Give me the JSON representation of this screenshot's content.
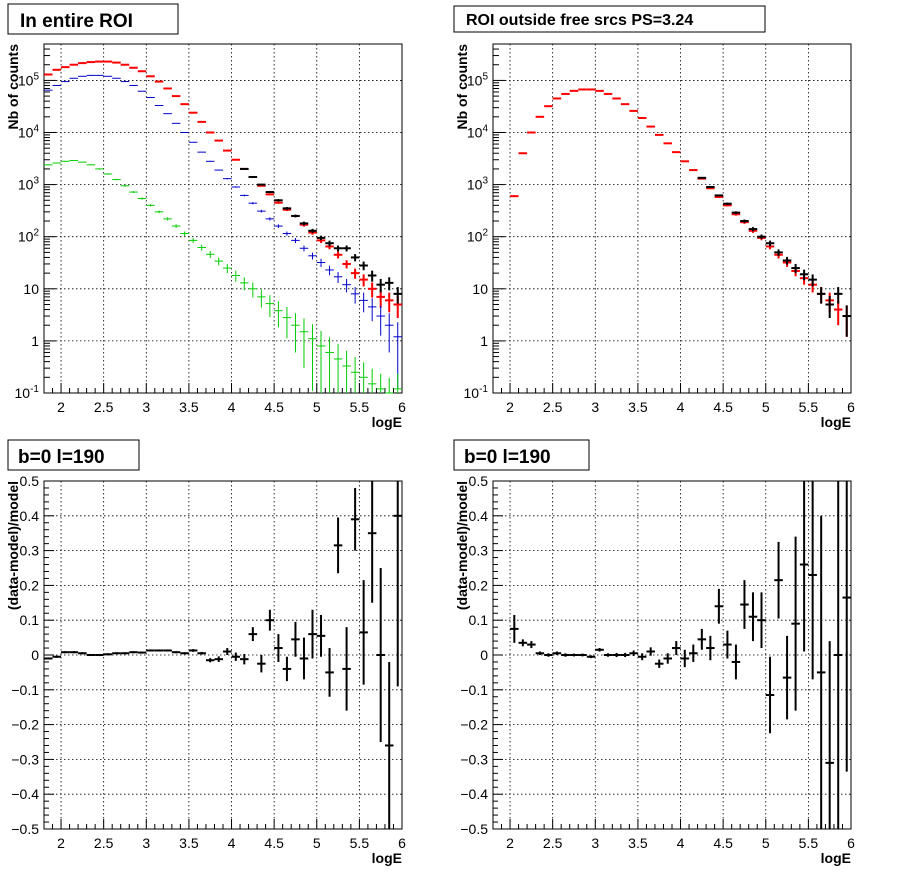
{
  "chart_data": [
    {
      "type": "scatter",
      "title": "In entire ROI",
      "xlabel": "logE",
      "ylabel": "Nb of counts",
      "xlim": [
        1.8,
        6.0
      ],
      "ylim": [
        0.1,
        500000
      ],
      "ylog": true,
      "grid": true,
      "x_ticks": [
        "2",
        "2.5",
        "3",
        "3.5",
        "4",
        "4.5",
        "5",
        "5.5",
        "6"
      ],
      "y_ticks": [
        "10^-1",
        "1",
        "10",
        "10^2",
        "10^3",
        "10^4",
        "10^5"
      ],
      "series": [
        {
          "color": "#ff0000",
          "x": [
            1.85,
            1.95,
            2.05,
            2.15,
            2.25,
            2.35,
            2.45,
            2.55,
            2.65,
            2.75,
            2.85,
            2.95,
            3.05,
            3.15,
            3.25,
            3.35,
            3.45,
            3.55,
            3.65,
            3.75,
            3.85,
            3.95,
            4.05,
            4.15,
            4.25,
            4.35,
            4.45,
            4.55,
            4.65,
            4.75,
            4.85,
            4.95,
            5.05,
            5.15,
            5.25,
            5.35,
            5.45,
            5.55,
            5.65,
            5.75,
            5.85,
            5.95
          ],
          "y": [
            130000,
            160000,
            180000,
            200000,
            215000,
            225000,
            230000,
            230000,
            220000,
            200000,
            175000,
            150000,
            120000,
            95000,
            70000,
            50000,
            35000,
            24000,
            16000,
            10000,
            7000,
            4500,
            3000,
            2000,
            1400,
            950,
            650,
            450,
            330,
            250,
            170,
            120,
            85,
            65,
            45,
            30,
            20,
            15,
            10,
            7,
            6,
            5
          ],
          "yerr_frac": [
            0.01,
            0.01,
            0.01,
            0.01,
            0.01,
            0.01,
            0.01,
            0.01,
            0.01,
            0.01,
            0.01,
            0.01,
            0.01,
            0.01,
            0.01,
            0.01,
            0.01,
            0.01,
            0.01,
            0.01,
            0.015,
            0.015,
            0.02,
            0.02,
            0.03,
            0.03,
            0.04,
            0.05,
            0.06,
            0.06,
            0.08,
            0.09,
            0.11,
            0.12,
            0.15,
            0.18,
            0.22,
            0.26,
            0.32,
            0.38,
            0.41,
            0.45
          ]
        },
        {
          "color": "#000000",
          "x": [
            4.15,
            4.25,
            4.35,
            4.45,
            4.55,
            4.65,
            4.75,
            4.85,
            4.95,
            5.05,
            5.15,
            5.25,
            5.35,
            5.45,
            5.55,
            5.65,
            5.75,
            5.85,
            5.95
          ],
          "y": [
            2000,
            1400,
            1000,
            720,
            500,
            350,
            250,
            180,
            130,
            95,
            75,
            60,
            60,
            40,
            28,
            18,
            12,
            13,
            8
          ],
          "yerr_frac": [
            0.02,
            0.03,
            0.03,
            0.04,
            0.05,
            0.06,
            0.06,
            0.08,
            0.09,
            0.1,
            0.12,
            0.13,
            0.13,
            0.16,
            0.19,
            0.24,
            0.29,
            0.28,
            0.35
          ]
        },
        {
          "color": "#0000cc",
          "x": [
            1.85,
            1.95,
            2.05,
            2.15,
            2.25,
            2.35,
            2.45,
            2.55,
            2.65,
            2.75,
            2.85,
            2.95,
            3.05,
            3.15,
            3.25,
            3.35,
            3.45,
            3.55,
            3.65,
            3.75,
            3.85,
            3.95,
            4.05,
            4.15,
            4.25,
            4.35,
            4.45,
            4.55,
            4.65,
            4.75,
            4.85,
            4.95,
            5.05,
            5.15,
            5.25,
            5.35,
            5.45,
            5.55,
            5.65,
            5.75,
            5.85,
            5.95
          ],
          "y": [
            65000,
            80000,
            95000,
            110000,
            120000,
            125000,
            125000,
            120000,
            110000,
            95000,
            80000,
            62000,
            47000,
            33000,
            23000,
            15000,
            10000,
            6500,
            4200,
            2800,
            1900,
            1300,
            900,
            620,
            440,
            310,
            220,
            160,
            115,
            85,
            60,
            43,
            32,
            23,
            17,
            12,
            8,
            6,
            4.5,
            3,
            2,
            1.2
          ],
          "yerr_frac": [
            0.01,
            0.01,
            0.01,
            0.01,
            0.01,
            0.01,
            0.01,
            0.01,
            0.01,
            0.01,
            0.01,
            0.01,
            0.01,
            0.01,
            0.01,
            0.01,
            0.01,
            0.01,
            0.015,
            0.02,
            0.02,
            0.03,
            0.03,
            0.04,
            0.05,
            0.06,
            0.07,
            0.08,
            0.09,
            0.11,
            0.13,
            0.15,
            0.18,
            0.21,
            0.24,
            0.29,
            0.35,
            0.41,
            0.47,
            0.58,
            0.7,
            0.9
          ]
        },
        {
          "color": "#00cc00",
          "x": [
            1.85,
            1.95,
            2.05,
            2.15,
            2.25,
            2.35,
            2.45,
            2.55,
            2.65,
            2.75,
            2.85,
            2.95,
            3.05,
            3.15,
            3.25,
            3.35,
            3.45,
            3.55,
            3.65,
            3.75,
            3.85,
            3.95,
            4.05,
            4.15,
            4.25,
            4.35,
            4.45,
            4.55,
            4.65,
            4.75,
            4.85,
            4.95,
            5.05,
            5.15,
            5.25,
            5.35,
            5.45,
            5.55,
            5.65,
            5.75,
            5.85,
            5.95
          ],
          "y": [
            2400,
            2600,
            2800,
            2900,
            2700,
            2400,
            2000,
            1600,
            1250,
            950,
            720,
            540,
            400,
            300,
            220,
            160,
            115,
            85,
            62,
            46,
            34,
            25,
            18,
            13,
            10,
            7,
            5.2,
            3.8,
            2.8,
            2,
            1.5,
            1.1,
            0.8,
            0.6,
            0.45,
            0.33,
            0.25,
            0.2,
            0.15,
            0.12,
            0.1,
            0.12
          ],
          "yerr_frac": [
            0.02,
            0.02,
            0.02,
            0.02,
            0.02,
            0.02,
            0.03,
            0.03,
            0.03,
            0.04,
            0.04,
            0.05,
            0.05,
            0.06,
            0.07,
            0.08,
            0.1,
            0.11,
            0.13,
            0.15,
            0.17,
            0.2,
            0.24,
            0.28,
            0.32,
            0.38,
            0.45,
            0.52,
            0.6,
            0.7,
            0.8,
            0.9,
            0.95,
            0.95,
            0.95,
            0.95,
            0.95,
            0.95,
            0.95,
            0.95,
            0.95,
            0.95
          ]
        }
      ]
    },
    {
      "type": "scatter",
      "title": "ROI outside free srcs PS=3.24",
      "xlabel": "logE",
      "ylabel": "Nb of counts",
      "xlim": [
        1.8,
        6.0
      ],
      "ylim": [
        0.1,
        500000
      ],
      "ylog": true,
      "grid": true,
      "x_ticks": [
        "2",
        "2.5",
        "3",
        "3.5",
        "4",
        "4.5",
        "5",
        "5.5",
        "6"
      ],
      "y_ticks": [
        "10^-1",
        "1",
        "10",
        "10^2",
        "10^3",
        "10^4",
        "10^5"
      ],
      "series": [
        {
          "color": "#ff0000",
          "x": [
            2.05,
            2.15,
            2.25,
            2.35,
            2.45,
            2.55,
            2.65,
            2.75,
            2.85,
            2.95,
            3.05,
            3.15,
            3.25,
            3.35,
            3.45,
            3.55,
            3.65,
            3.75,
            3.85,
            3.95,
            4.05,
            4.15,
            4.25,
            4.35,
            4.45,
            4.55,
            4.65,
            4.75,
            4.85,
            4.95,
            5.05,
            5.15,
            5.25,
            5.35,
            5.45,
            5.55,
            5.65,
            5.75,
            5.85,
            5.95
          ],
          "y": [
            600,
            4000,
            10000,
            20000,
            32000,
            45000,
            55000,
            63000,
            67000,
            67000,
            63000,
            55000,
            45000,
            35000,
            26000,
            19000,
            13000,
            9000,
            6200,
            4200,
            2800,
            1900,
            1300,
            850,
            580,
            400,
            270,
            190,
            130,
            95,
            65,
            45,
            32,
            22,
            16,
            12,
            8,
            6,
            4,
            3
          ],
          "yerr_frac": [
            0.04,
            0.02,
            0.01,
            0.01,
            0.01,
            0.01,
            0.01,
            0.01,
            0.01,
            0.01,
            0.01,
            0.01,
            0.01,
            0.01,
            0.01,
            0.01,
            0.01,
            0.01,
            0.015,
            0.015,
            0.02,
            0.02,
            0.03,
            0.03,
            0.04,
            0.05,
            0.06,
            0.07,
            0.09,
            0.1,
            0.12,
            0.15,
            0.18,
            0.21,
            0.25,
            0.29,
            0.35,
            0.41,
            0.5,
            0.6
          ]
        },
        {
          "color": "#000000",
          "x": [
            4.25,
            4.35,
            4.45,
            4.55,
            4.65,
            4.75,
            4.85,
            4.95,
            5.05,
            5.15,
            5.25,
            5.35,
            5.45,
            5.55,
            5.65,
            5.75,
            5.85,
            5.95
          ],
          "y": [
            1350,
            900,
            620,
            430,
            290,
            200,
            140,
            100,
            75,
            50,
            35,
            25,
            19,
            15,
            8,
            5,
            8,
            3
          ],
          "yerr_frac": [
            0.03,
            0.03,
            0.04,
            0.05,
            0.06,
            0.07,
            0.09,
            0.1,
            0.12,
            0.14,
            0.17,
            0.2,
            0.23,
            0.26,
            0.35,
            0.45,
            0.35,
            0.6
          ]
        }
      ]
    },
    {
      "type": "scatter",
      "title": "b=0 l=190",
      "xlabel": "logE",
      "ylabel": "(data-model)/model",
      "xlim": [
        1.8,
        6.0
      ],
      "ylim": [
        -0.5,
        0.5
      ],
      "grid": true,
      "x_ticks": [
        "2",
        "2.5",
        "3",
        "3.5",
        "4",
        "4.5",
        "5",
        "5.5",
        "6"
      ],
      "y_ticks": [
        "-0.5",
        "-0.4",
        "-0.3",
        "-0.2",
        "-0.1",
        "0",
        "0.1",
        "0.2",
        "0.3",
        "0.4",
        "0.5"
      ],
      "series": [
        {
          "color": "#000000",
          "x": [
            1.85,
            1.95,
            2.05,
            2.15,
            2.25,
            2.35,
            2.45,
            2.55,
            2.65,
            2.75,
            2.85,
            2.95,
            3.05,
            3.15,
            3.25,
            3.35,
            3.45,
            3.55,
            3.65,
            3.75,
            3.85,
            3.95,
            4.05,
            4.15,
            4.25,
            4.35,
            4.45,
            4.55,
            4.65,
            4.75,
            4.85,
            4.95,
            5.05,
            5.15,
            5.25,
            5.35,
            5.45,
            5.55,
            5.65,
            5.75,
            5.85,
            5.95
          ],
          "y": [
            -0.01,
            -0.005,
            0.008,
            0.008,
            0.005,
            0.0,
            0.0,
            0.002,
            0.005,
            0.005,
            0.008,
            0.007,
            0.013,
            0.013,
            0.013,
            0.008,
            0.005,
            0.013,
            0.005,
            -0.015,
            -0.012,
            0.01,
            -0.005,
            -0.012,
            0.06,
            -0.025,
            0.1,
            0.02,
            -0.04,
            0.045,
            -0.01,
            0.06,
            0.055,
            -0.05,
            0.315,
            -0.04,
            0.39,
            0.065,
            0.35,
            0.0,
            -0.26,
            0.4
          ],
          "yerr": [
            0.003,
            0.003,
            0.003,
            0.003,
            0.003,
            0.003,
            0.003,
            0.003,
            0.003,
            0.003,
            0.003,
            0.003,
            0.003,
            0.003,
            0.003,
            0.003,
            0.003,
            0.004,
            0.004,
            0.006,
            0.008,
            0.01,
            0.012,
            0.015,
            0.02,
            0.025,
            0.03,
            0.04,
            0.035,
            0.05,
            0.06,
            0.07,
            0.06,
            0.07,
            0.08,
            0.12,
            0.09,
            0.15,
            0.2,
            0.25,
            0.24,
            0.49
          ]
        }
      ]
    },
    {
      "type": "scatter",
      "title": "b=0 l=190",
      "xlabel": "logE",
      "ylabel": "(data-model)/model",
      "xlim": [
        1.8,
        6.0
      ],
      "ylim": [
        -0.5,
        0.5
      ],
      "grid": true,
      "x_ticks": [
        "2",
        "2.5",
        "3",
        "3.5",
        "4",
        "4.5",
        "5",
        "5.5",
        "6"
      ],
      "y_ticks": [
        "-0.5",
        "-0.4",
        "-0.3",
        "-0.2",
        "-0.1",
        "0",
        "0.1",
        "0.2",
        "0.3",
        "0.4",
        "0.5"
      ],
      "series": [
        {
          "color": "#000000",
          "x": [
            2.05,
            2.15,
            2.25,
            2.35,
            2.45,
            2.55,
            2.65,
            2.75,
            2.85,
            2.95,
            3.05,
            3.15,
            3.25,
            3.35,
            3.45,
            3.55,
            3.65,
            3.75,
            3.85,
            3.95,
            4.05,
            4.15,
            4.25,
            4.35,
            4.45,
            4.55,
            4.65,
            4.75,
            4.85,
            4.95,
            5.05,
            5.15,
            5.25,
            5.35,
            5.45,
            5.55,
            5.65,
            5.75,
            5.85,
            5.95
          ],
          "y": [
            0.075,
            0.035,
            0.03,
            0.005,
            0.0,
            0.005,
            0.0,
            0.0,
            0.0,
            -0.005,
            0.015,
            0.0,
            0.0,
            0.0,
            0.005,
            -0.005,
            0.01,
            -0.025,
            -0.01,
            0.02,
            -0.01,
            0.005,
            0.045,
            0.02,
            0.14,
            0.03,
            -0.02,
            0.145,
            0.11,
            0.1,
            -0.115,
            0.215,
            -0.065,
            0.09,
            0.26,
            0.23,
            -0.05,
            -0.31,
            0.0,
            0.165
          ],
          "yerr": [
            0.04,
            0.01,
            0.01,
            0.005,
            0.005,
            0.005,
            0.005,
            0.004,
            0.004,
            0.004,
            0.005,
            0.005,
            0.006,
            0.006,
            0.008,
            0.01,
            0.012,
            0.012,
            0.015,
            0.02,
            0.025,
            0.025,
            0.03,
            0.035,
            0.05,
            0.04,
            0.05,
            0.07,
            0.07,
            0.08,
            0.11,
            0.11,
            0.12,
            0.25,
            0.25,
            0.3,
            0.45,
            0.35,
            0.6,
            0.5
          ]
        }
      ]
    }
  ]
}
